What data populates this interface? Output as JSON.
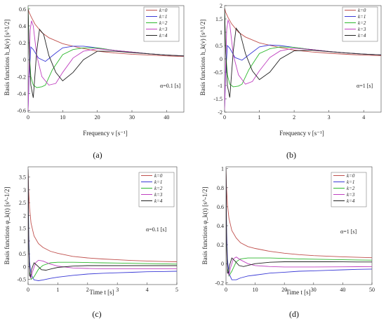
{
  "chart_data": [
    {
      "panel_label": "(a)",
      "type": "line",
      "xlabel": "Frequency  ν [s⁻¹]",
      "ylabel": "Basis functions  h_k(ν) [s^1/2]",
      "annotation": "α=0.1 [s]",
      "xlim": [
        0,
        45
      ],
      "ylim": [
        -0.62,
        0.64
      ],
      "xticks": [
        0,
        10,
        20,
        30,
        40
      ],
      "yticks": [
        -0.6,
        -0.4,
        -0.2,
        0,
        0.2,
        0.4,
        0.6
      ],
      "ytick_labels": [
        "-0.6",
        "-0.4",
        "-0.2",
        "0",
        "0.2",
        "0.4",
        "0.6"
      ],
      "grid": false,
      "legend_position": "top-right",
      "series": [
        {
          "name": "k=0",
          "color": "#c0504d",
          "x": [
            0,
            0.3,
            1,
            2,
            4,
            6,
            10,
            15,
            20,
            25,
            30,
            35,
            40,
            45
          ],
          "y": [
            0.6,
            0.56,
            0.5,
            0.42,
            0.32,
            0.26,
            0.19,
            0.14,
            0.1,
            0.08,
            0.065,
            0.055,
            0.045,
            0.038
          ]
        },
        {
          "name": "k=1",
          "color": "#3a3ad6",
          "x": [
            0,
            0.3,
            0.8,
            1.5,
            3,
            5,
            8,
            10,
            13,
            16,
            20,
            25,
            30,
            35,
            40,
            45
          ],
          "y": [
            -0.6,
            -0.2,
            0.15,
            0.12,
            0.02,
            -0.02,
            0.08,
            0.14,
            0.16,
            0.16,
            0.14,
            0.11,
            0.09,
            0.07,
            0.055,
            0.045
          ]
        },
        {
          "name": "k=2",
          "color": "#2db82d",
          "x": [
            0,
            0.3,
            0.8,
            1.5,
            2.5,
            4,
            5,
            7,
            10,
            13,
            16,
            20,
            25,
            30,
            35,
            40,
            45
          ],
          "y": [
            0.62,
            0.1,
            -0.2,
            -0.3,
            -0.33,
            -0.32,
            -0.3,
            -0.12,
            0.06,
            0.12,
            0.14,
            0.14,
            0.11,
            0.09,
            0.07,
            0.055,
            0.045
          ]
        },
        {
          "name": "k=3",
          "color": "#c040c0",
          "x": [
            0,
            0.3,
            0.6,
            1,
            1.5,
            2.5,
            4,
            6,
            8,
            10,
            13,
            16,
            20,
            25,
            30,
            35,
            40,
            45
          ],
          "y": [
            -0.6,
            -0.1,
            0.35,
            0.46,
            0.4,
            0.05,
            -0.2,
            -0.3,
            -0.28,
            -0.15,
            0.02,
            0.1,
            0.13,
            0.11,
            0.09,
            0.07,
            0.055,
            0.045
          ]
        },
        {
          "name": "k=4",
          "color": "#222222",
          "x": [
            0,
            0.3,
            0.8,
            1.5,
            2.5,
            3.3,
            4.5,
            6,
            8,
            10,
            13,
            16,
            20,
            25,
            30,
            35,
            40,
            45
          ],
          "y": [
            0.6,
            0.1,
            -0.3,
            -0.45,
            0.1,
            0.36,
            0.3,
            0.05,
            -0.15,
            -0.25,
            -0.15,
            0,
            0.1,
            0.1,
            0.085,
            0.07,
            0.055,
            0.045
          ]
        }
      ]
    },
    {
      "panel_label": "(b)",
      "type": "line",
      "xlabel": "Frequency  ν [s⁻¹]",
      "ylabel": "Basis functions  h_k(ν) [s^1/2]",
      "annotation": "α=1 [s]",
      "xlim": [
        0,
        4.5
      ],
      "ylim": [
        -2,
        2
      ],
      "xticks": [
        0,
        1,
        2,
        3,
        4
      ],
      "yticks": [
        -2,
        -1.5,
        -1,
        -0.5,
        0,
        0.5,
        1,
        1.5,
        2
      ],
      "ytick_labels": [
        "-2",
        "-1.5",
        "-1",
        "-0.5",
        "0",
        "0.5",
        "1",
        "1.5",
        "2"
      ],
      "grid": false,
      "legend_position": "top-right",
      "series": [
        {
          "name": "k=0",
          "color": "#c0504d",
          "x": [
            0,
            0.03,
            0.1,
            0.2,
            0.4,
            0.6,
            1,
            1.5,
            2,
            2.5,
            3,
            3.5,
            4,
            4.5
          ],
          "y": [
            1.9,
            1.75,
            1.55,
            1.32,
            1.0,
            0.82,
            0.6,
            0.45,
            0.33,
            0.26,
            0.21,
            0.17,
            0.14,
            0.12
          ]
        },
        {
          "name": "k=1",
          "color": "#3a3ad6",
          "x": [
            0,
            0.03,
            0.08,
            0.15,
            0.3,
            0.5,
            0.8,
            1,
            1.3,
            1.6,
            2,
            2.5,
            3,
            3.5,
            4,
            4.5
          ],
          "y": [
            -1.9,
            -0.6,
            0.5,
            0.4,
            0.05,
            -0.05,
            0.25,
            0.45,
            0.52,
            0.5,
            0.43,
            0.35,
            0.28,
            0.22,
            0.18,
            0.15
          ]
        },
        {
          "name": "k=2",
          "color": "#2db82d",
          "x": [
            0,
            0.03,
            0.08,
            0.15,
            0.25,
            0.4,
            0.5,
            0.7,
            1,
            1.3,
            1.6,
            2,
            2.5,
            3,
            3.5,
            4,
            4.5
          ],
          "y": [
            1.9,
            0.3,
            -0.6,
            -0.95,
            -1.05,
            -1.02,
            -0.95,
            -0.4,
            0.2,
            0.38,
            0.45,
            0.43,
            0.35,
            0.28,
            0.22,
            0.18,
            0.15
          ]
        },
        {
          "name": "k=3",
          "color": "#c040c0",
          "x": [
            0,
            0.03,
            0.06,
            0.1,
            0.15,
            0.25,
            0.4,
            0.6,
            0.8,
            1,
            1.3,
            1.6,
            2,
            2.5,
            3,
            3.5,
            4,
            4.5
          ],
          "y": [
            -1.9,
            -0.3,
            1.1,
            1.45,
            1.3,
            0.15,
            -0.6,
            -0.95,
            -0.85,
            -0.45,
            0.05,
            0.3,
            0.4,
            0.35,
            0.28,
            0.22,
            0.18,
            0.15
          ]
        },
        {
          "name": "k=4",
          "color": "#222222",
          "x": [
            0,
            0.03,
            0.08,
            0.15,
            0.25,
            0.33,
            0.45,
            0.6,
            0.8,
            1,
            1.3,
            1.6,
            2,
            2.5,
            3,
            3.5,
            4,
            4.5
          ],
          "y": [
            1.9,
            0.3,
            -1.0,
            -1.45,
            0.3,
            1.15,
            0.95,
            0.2,
            -0.45,
            -0.78,
            -0.5,
            0,
            0.3,
            0.33,
            0.27,
            0.22,
            0.18,
            0.15
          ]
        }
      ]
    },
    {
      "panel_label": "(c)",
      "type": "line",
      "xlabel": "Time  t [s]",
      "ylabel": "Basis functions  φ_k(t) [s^-1/2]",
      "annotation": "α=0.1 [s]",
      "xlim": [
        0,
        5
      ],
      "ylim": [
        -0.7,
        3.9
      ],
      "xticks": [
        0,
        1,
        2,
        3,
        4,
        5
      ],
      "yticks": [
        -0.5,
        0,
        0.5,
        1,
        1.5,
        2,
        2.5,
        3,
        3.5
      ],
      "ytick_labels": [
        "-0.5",
        "0",
        "0.5",
        "1",
        "1.5",
        "2",
        "2.5",
        "3",
        "3.5"
      ],
      "grid": false,
      "legend_position": "top-right",
      "series": [
        {
          "name": "k=0",
          "color": "#c0504d",
          "x": [
            0,
            0.02,
            0.05,
            0.1,
            0.2,
            0.35,
            0.5,
            0.75,
            1,
            1.5,
            2,
            2.5,
            3,
            3.5,
            4,
            4.5,
            5
          ],
          "y": [
            3.8,
            3.0,
            2.3,
            1.7,
            1.2,
            0.9,
            0.75,
            0.6,
            0.52,
            0.4,
            0.34,
            0.3,
            0.27,
            0.24,
            0.22,
            0.2,
            0.19
          ]
        },
        {
          "name": "k=1",
          "color": "#3a3ad6",
          "x": [
            0,
            0.02,
            0.05,
            0.1,
            0.2,
            0.35,
            0.5,
            0.75,
            1,
            1.5,
            2,
            2.5,
            3,
            3.5,
            4,
            4.5,
            5
          ],
          "y": [
            3.8,
            1.5,
            0.2,
            -0.3,
            -0.52,
            -0.55,
            -0.52,
            -0.46,
            -0.41,
            -0.34,
            -0.29,
            -0.26,
            -0.24,
            -0.22,
            -0.2,
            -0.19,
            -0.18
          ]
        },
        {
          "name": "k=2",
          "color": "#2db82d",
          "x": [
            0,
            0.02,
            0.05,
            0.1,
            0.2,
            0.35,
            0.5,
            0.75,
            1,
            1.5,
            2,
            2.5,
            3,
            3.5,
            4,
            4.5,
            5
          ],
          "y": [
            3.8,
            1.2,
            -0.2,
            -0.5,
            -0.4,
            -0.1,
            0.05,
            0.15,
            0.17,
            0.17,
            0.16,
            0.15,
            0.14,
            0.13,
            0.12,
            0.11,
            0.1
          ]
        },
        {
          "name": "k=3",
          "color": "#c040c0",
          "x": [
            0,
            0.02,
            0.05,
            0.1,
            0.15,
            0.25,
            0.35,
            0.5,
            0.75,
            1,
            1.5,
            2,
            2.5,
            3,
            3.5,
            4,
            4.5,
            5
          ],
          "y": [
            3.8,
            1.0,
            -0.3,
            -0.45,
            -0.2,
            0.15,
            0.25,
            0.22,
            0.1,
            0.02,
            -0.05,
            -0.07,
            -0.08,
            -0.08,
            -0.08,
            -0.08,
            -0.08,
            -0.08
          ]
        },
        {
          "name": "k=4",
          "color": "#222222",
          "x": [
            0,
            0.02,
            0.05,
            0.08,
            0.12,
            0.2,
            0.3,
            0.45,
            0.6,
            0.8,
            1,
            1.5,
            2,
            2.5,
            3,
            3.5,
            4,
            4.5,
            5
          ],
          "y": [
            3.8,
            0.9,
            -0.35,
            -0.4,
            -0.1,
            0.15,
            0.05,
            -0.12,
            -0.14,
            -0.08,
            -0.03,
            0.02,
            0.04,
            0.04,
            0.04,
            0.04,
            0.04,
            0.04,
            0.04
          ]
        }
      ]
    },
    {
      "panel_label": "(d)",
      "type": "line",
      "xlabel": "Time  t [s]",
      "ylabel": "Basis functions  φ_k(t) [s^-1/2]",
      "annotation": "α=1 [s]",
      "xlim": [
        0,
        50
      ],
      "ylim": [
        -0.22,
        1.02
      ],
      "xticks": [
        0,
        10,
        20,
        30,
        40,
        50
      ],
      "yticks": [
        -0.2,
        0,
        0.2,
        0.4,
        0.6,
        0.8,
        1
      ],
      "ytick_labels": [
        "-0.2",
        "0",
        "0.2",
        "0.4",
        "0.6",
        "0.8",
        "1"
      ],
      "grid": false,
      "legend_position": "top-right",
      "series": [
        {
          "name": "k=0",
          "color": "#c0504d",
          "x": [
            0,
            0.2,
            0.5,
            1,
            2,
            3.5,
            5,
            7.5,
            10,
            15,
            20,
            25,
            30,
            35,
            40,
            45,
            50
          ],
          "y": [
            1.0,
            0.8,
            0.62,
            0.48,
            0.35,
            0.27,
            0.22,
            0.18,
            0.16,
            0.13,
            0.11,
            0.095,
            0.085,
            0.078,
            0.072,
            0.067,
            0.063
          ]
        },
        {
          "name": "k=1",
          "color": "#3a3ad6",
          "x": [
            0,
            0.2,
            0.5,
            1,
            2,
            3.5,
            5,
            7.5,
            10,
            15,
            20,
            25,
            30,
            35,
            40,
            45,
            50
          ],
          "y": [
            1.0,
            0.4,
            0.05,
            -0.1,
            -0.17,
            -0.17,
            -0.15,
            -0.13,
            -0.12,
            -0.1,
            -0.09,
            -0.08,
            -0.075,
            -0.07,
            -0.065,
            -0.06,
            -0.057
          ]
        },
        {
          "name": "k=2",
          "color": "#2db82d",
          "x": [
            0,
            0.2,
            0.5,
            1,
            2,
            3.5,
            5,
            7.5,
            10,
            15,
            20,
            25,
            30,
            35,
            40,
            45,
            50
          ],
          "y": [
            1.0,
            0.3,
            -0.05,
            -0.13,
            -0.08,
            0.02,
            0.05,
            0.06,
            0.06,
            0.06,
            0.055,
            0.05,
            0.047,
            0.044,
            0.041,
            0.039,
            0.037
          ]
        },
        {
          "name": "k=3",
          "color": "#c040c0",
          "x": [
            0,
            0.2,
            0.5,
            1,
            1.5,
            2.5,
            3.5,
            5,
            7.5,
            10,
            15,
            20,
            25,
            30,
            35,
            40,
            45,
            50
          ],
          "y": [
            1.0,
            0.25,
            -0.08,
            -0.12,
            -0.05,
            0.05,
            0.07,
            0.04,
            0.0,
            -0.02,
            -0.03,
            -0.035,
            -0.035,
            -0.035,
            -0.034,
            -0.033,
            -0.032,
            -0.031
          ]
        },
        {
          "name": "k=4",
          "color": "#222222",
          "x": [
            0,
            0.2,
            0.5,
            0.8,
            1.2,
            2,
            3,
            4.5,
            6,
            8,
            10,
            15,
            20,
            25,
            30,
            35,
            40,
            45,
            50
          ],
          "y": [
            1.0,
            0.2,
            -0.1,
            -0.1,
            -0.02,
            0.06,
            0.03,
            -0.02,
            -0.03,
            -0.015,
            0.0,
            0.015,
            0.02,
            0.02,
            0.02,
            0.02,
            0.019,
            0.018,
            0.018
          ]
        }
      ]
    }
  ]
}
